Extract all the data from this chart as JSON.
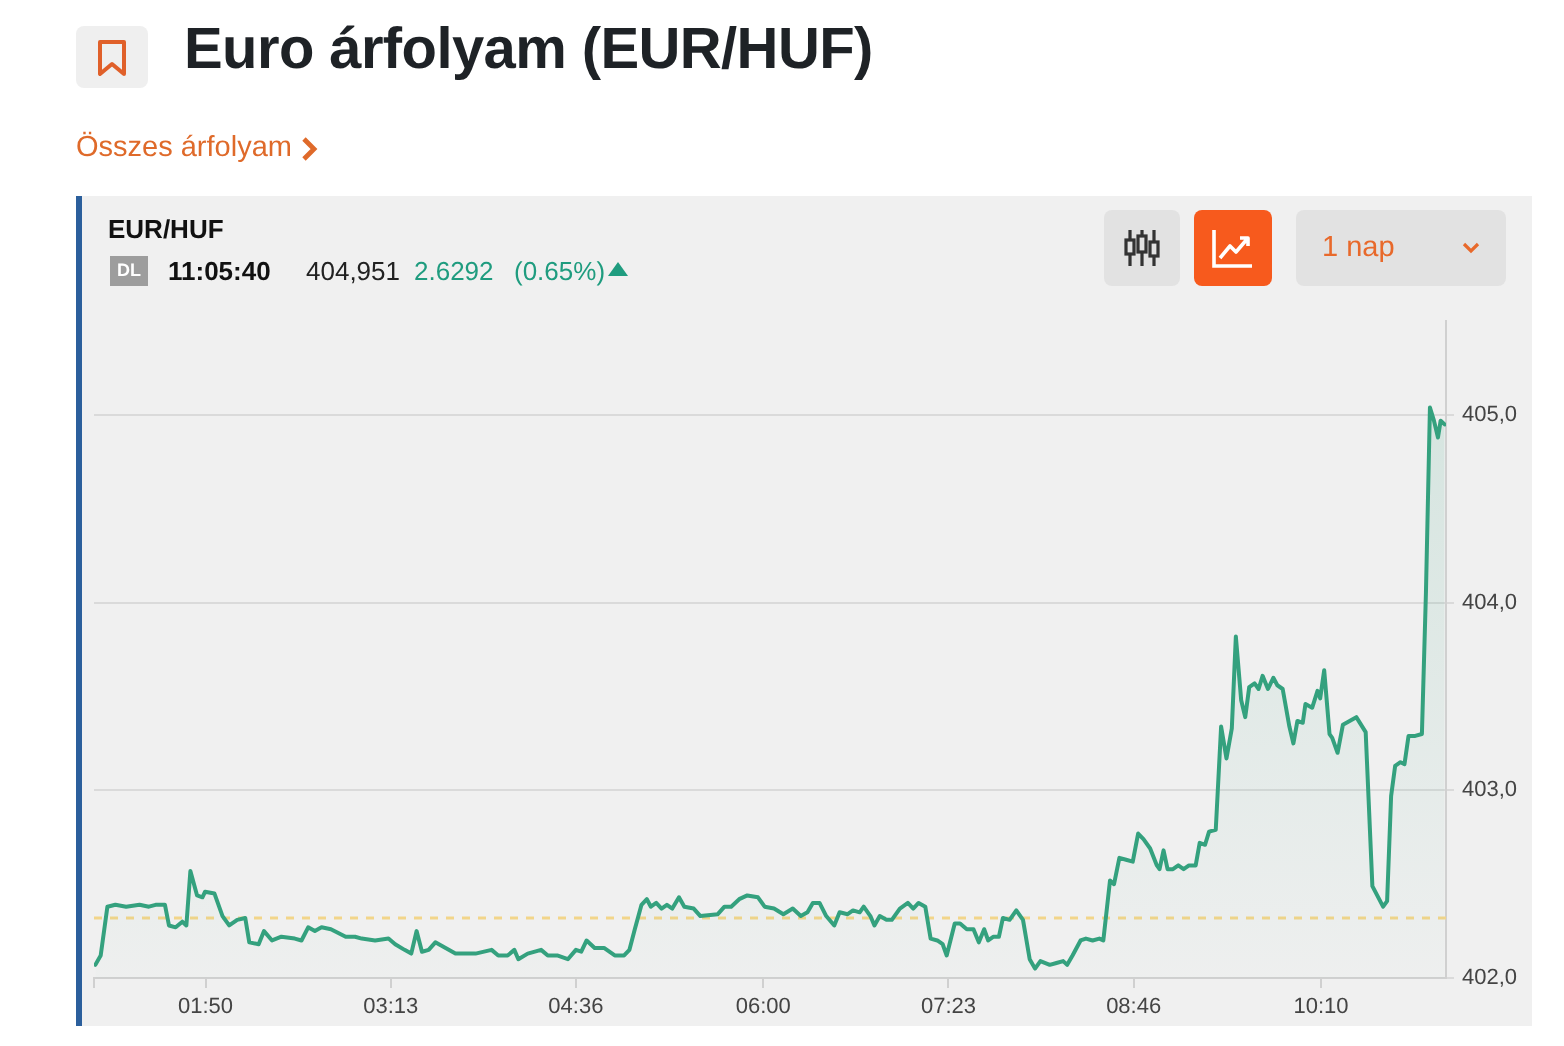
{
  "chart_data": {
    "type": "area",
    "title": "Euro árfolyam (EUR/HUF)",
    "subtitle": "EUR/HUF",
    "annotations": [
      "Összes árfolyam",
      "DL",
      "11:05:40",
      "404,951",
      "2.6292",
      "(0.65%)",
      "1 nap"
    ],
    "color": "#34a17e",
    "x": [
      1.01,
      1.05,
      1.1,
      1.16,
      1.24,
      1.34,
      1.41,
      1.46,
      1.53,
      1.56,
      1.61,
      1.66,
      1.69,
      1.72,
      1.77,
      1.81,
      1.83,
      1.9,
      1.96,
      2.01,
      2.07,
      2.13,
      2.16,
      2.23,
      2.27,
      2.33,
      2.4,
      2.5,
      2.55,
      2.6,
      2.65,
      2.7,
      2.77,
      2.88,
      2.95,
      3.0,
      3.1,
      3.2,
      3.25,
      3.32,
      3.37,
      3.41,
      3.45,
      3.5,
      3.55,
      3.65,
      3.7,
      3.85,
      3.97,
      4.02,
      4.09,
      4.14,
      4.17,
      4.24,
      4.34,
      4.39,
      4.46,
      4.54,
      4.6,
      4.64,
      4.68,
      4.74,
      4.81,
      4.89,
      4.96,
      5.0,
      5.04,
      5.09,
      5.13,
      5.16,
      5.2,
      5.24,
      5.28,
      5.32,
      5.37,
      5.41,
      5.48,
      5.53,
      5.66,
      5.71,
      5.76,
      5.82,
      5.88,
      5.96,
      6.01,
      6.08,
      6.15,
      6.22,
      6.28,
      6.33,
      6.37,
      6.42,
      6.47,
      6.53,
      6.57,
      6.63,
      6.67,
      6.72,
      6.75,
      6.8,
      6.83,
      6.87,
      6.92,
      6.96,
      7.02,
      7.08,
      7.12,
      7.16,
      7.21,
      7.25,
      7.3,
      7.34,
      7.37,
      7.43,
      7.47,
      7.52,
      7.57,
      7.61,
      7.65,
      7.68,
      7.72,
      7.76,
      7.79,
      7.84,
      7.89,
      7.94,
      7.99,
      8.03,
      8.07,
      8.14,
      8.19,
      8.24,
      8.27,
      8.31,
      8.37,
      8.41,
      8.46,
      8.51,
      8.54,
      8.59,
      8.62,
      8.66,
      8.71,
      8.76,
      8.8,
      8.84,
      8.89,
      8.94,
      8.96,
      8.99,
      9.02,
      9.06,
      9.1,
      9.14,
      9.18,
      9.23,
      9.26,
      9.3,
      9.33,
      9.38,
      9.42,
      9.46,
      9.5,
      9.53,
      9.57,
      9.6,
      9.63,
      9.67,
      9.7,
      9.73,
      9.77,
      9.81,
      9.84,
      9.88,
      9.93,
      9.96,
      9.99,
      10.03,
      10.05,
      10.1,
      10.14,
      10.16,
      10.19,
      10.23,
      10.25,
      10.29,
      10.33,
      10.38,
      10.43,
      10.5,
      10.55,
      10.63,
      10.66,
      10.69,
      10.72,
      10.76,
      10.79,
      10.82,
      10.87,
      10.92,
      10.95,
      10.98,
      11.01,
      11.04,
      11.06,
      11.09
    ],
    "values": [
      402.07,
      402.12,
      402.38,
      402.39,
      402.38,
      402.39,
      402.38,
      402.39,
      402.39,
      402.28,
      402.27,
      402.3,
      402.28,
      402.57,
      402.44,
      402.43,
      402.46,
      402.45,
      402.33,
      402.28,
      402.31,
      402.32,
      402.19,
      402.18,
      402.25,
      402.2,
      402.22,
      402.21,
      402.2,
      402.27,
      402.25,
      402.27,
      402.26,
      402.22,
      402.22,
      402.21,
      402.2,
      402.21,
      402.18,
      402.15,
      402.13,
      402.25,
      402.14,
      402.15,
      402.19,
      402.15,
      402.13,
      402.13,
      402.15,
      402.12,
      402.12,
      402.15,
      402.1,
      402.13,
      402.15,
      402.12,
      402.12,
      402.1,
      402.15,
      402.14,
      402.2,
      402.16,
      402.16,
      402.12,
      402.12,
      402.15,
      402.26,
      402.39,
      402.42,
      402.38,
      402.4,
      402.37,
      402.39,
      402.37,
      402.43,
      402.38,
      402.37,
      402.33,
      402.34,
      402.38,
      402.38,
      402.42,
      402.44,
      402.43,
      402.38,
      402.37,
      402.34,
      402.37,
      402.33,
      402.35,
      402.4,
      402.4,
      402.33,
      402.28,
      402.35,
      402.34,
      402.36,
      402.35,
      402.38,
      402.33,
      402.28,
      402.33,
      402.31,
      402.31,
      402.37,
      402.4,
      402.37,
      402.4,
      402.38,
      402.21,
      402.2,
      402.18,
      402.12,
      402.29,
      402.29,
      402.26,
      402.26,
      402.19,
      402.26,
      402.2,
      402.22,
      402.22,
      402.32,
      402.31,
      402.36,
      402.31,
      402.1,
      402.05,
      402.09,
      402.07,
      402.08,
      402.09,
      402.07,
      402.12,
      402.2,
      402.21,
      402.2,
      402.21,
      402.2,
      402.52,
      402.5,
      402.64,
      402.63,
      402.62,
      402.77,
      402.74,
      402.69,
      402.6,
      402.58,
      402.68,
      402.58,
      402.58,
      402.6,
      402.58,
      402.6,
      402.6,
      402.72,
      402.71,
      402.78,
      402.79,
      403.34,
      403.17,
      403.33,
      403.82,
      403.48,
      403.39,
      403.55,
      403.57,
      403.54,
      403.61,
      403.54,
      403.6,
      403.56,
      403.54,
      403.34,
      403.25,
      403.37,
      403.36,
      403.46,
      403.44,
      403.53,
      403.49,
      403.64,
      403.3,
      403.28,
      403.2,
      403.35,
      403.37,
      403.39,
      403.31,
      402.49,
      402.38,
      402.41,
      402.97,
      403.13,
      403.15,
      403.14,
      403.29,
      403.29,
      403.3,
      404.05,
      405.04,
      404.97,
      404.88,
      404.97,
      404.95
    ],
    "xlim": [
      1,
      11.1
    ],
    "xticks": [
      {
        "value": 1,
        "label": null
      },
      {
        "value": 1.8333,
        "label": "01:50"
      },
      {
        "value": 3.2167,
        "label": "03:13"
      },
      {
        "value": 4.6,
        "label": "04:36"
      },
      {
        "value": 6,
        "label": "06:00"
      },
      {
        "value": 7.3833,
        "label": "07:23"
      },
      {
        "value": 8.7667,
        "label": "08:46"
      },
      {
        "value": 10.1667,
        "label": "10:10"
      }
    ],
    "ylim": [
      402,
      405.5
    ],
    "yticks": [
      {
        "value": 402,
        "label": "402,0"
      },
      {
        "value": 403,
        "label": "403,0"
      },
      {
        "value": 404,
        "label": "404,0"
      },
      {
        "value": 405,
        "label": "405,0"
      }
    ],
    "grid": "y",
    "ref_lines": [
      {
        "axis": "y",
        "value": 402.32,
        "color": "#f2d58a",
        "line_style": "dashed"
      }
    ]
  }
}
